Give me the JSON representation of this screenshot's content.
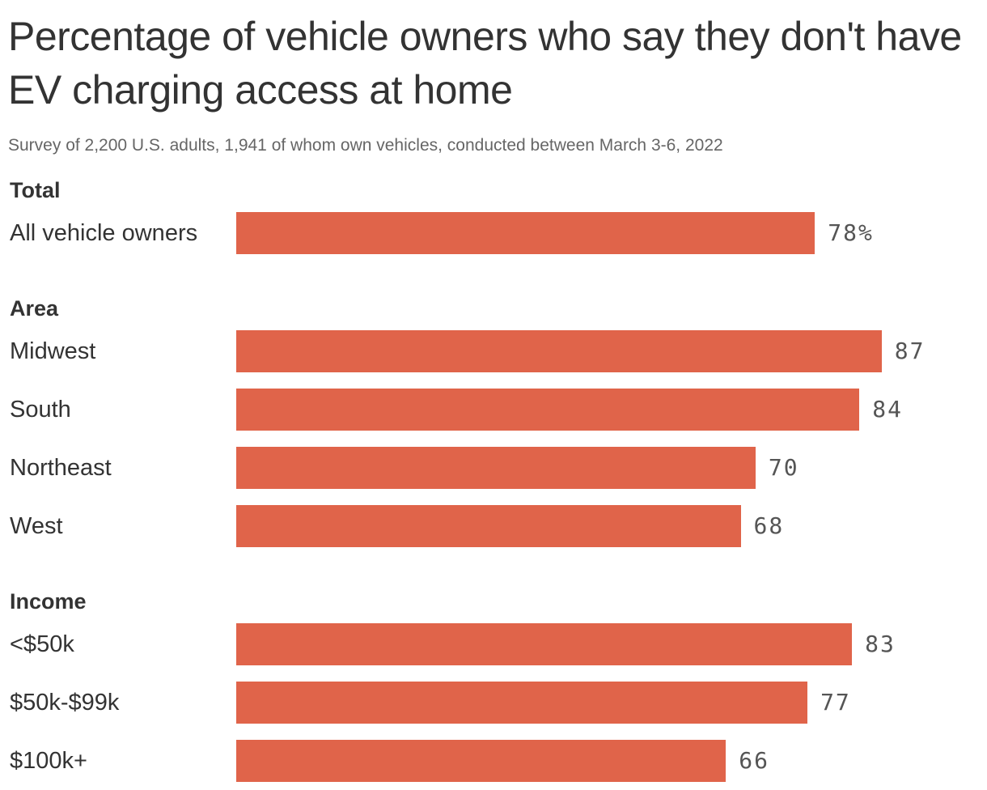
{
  "title": "Percentage of vehicle owners who say they don't have EV charging access at home",
  "subtitle": "Survey of 2,200 U.S. adults, 1,941 of whom own vehicles, conducted between March 3-6, 2022",
  "colors": {
    "bar": "#e0644a",
    "text": "#333333",
    "subtext": "#666666"
  },
  "chart_data": {
    "type": "bar",
    "orientation": "horizontal",
    "xlim": [
      0,
      100
    ],
    "unit": "%",
    "groups": [
      {
        "name": "Total",
        "rows": [
          {
            "label": "All vehicle owners",
            "value": 78,
            "value_label": "78%"
          }
        ]
      },
      {
        "name": "Area",
        "rows": [
          {
            "label": "Midwest",
            "value": 87,
            "value_label": "87"
          },
          {
            "label": "South",
            "value": 84,
            "value_label": "84"
          },
          {
            "label": "Northeast",
            "value": 70,
            "value_label": "70"
          },
          {
            "label": "West",
            "value": 68,
            "value_label": "68"
          }
        ]
      },
      {
        "name": "Income",
        "rows": [
          {
            "label": "<$50k",
            "value": 83,
            "value_label": "83"
          },
          {
            "label": "$50k-$99k",
            "value": 77,
            "value_label": "77"
          },
          {
            "label": "$100k+",
            "value": 66,
            "value_label": "66"
          }
        ]
      }
    ]
  }
}
